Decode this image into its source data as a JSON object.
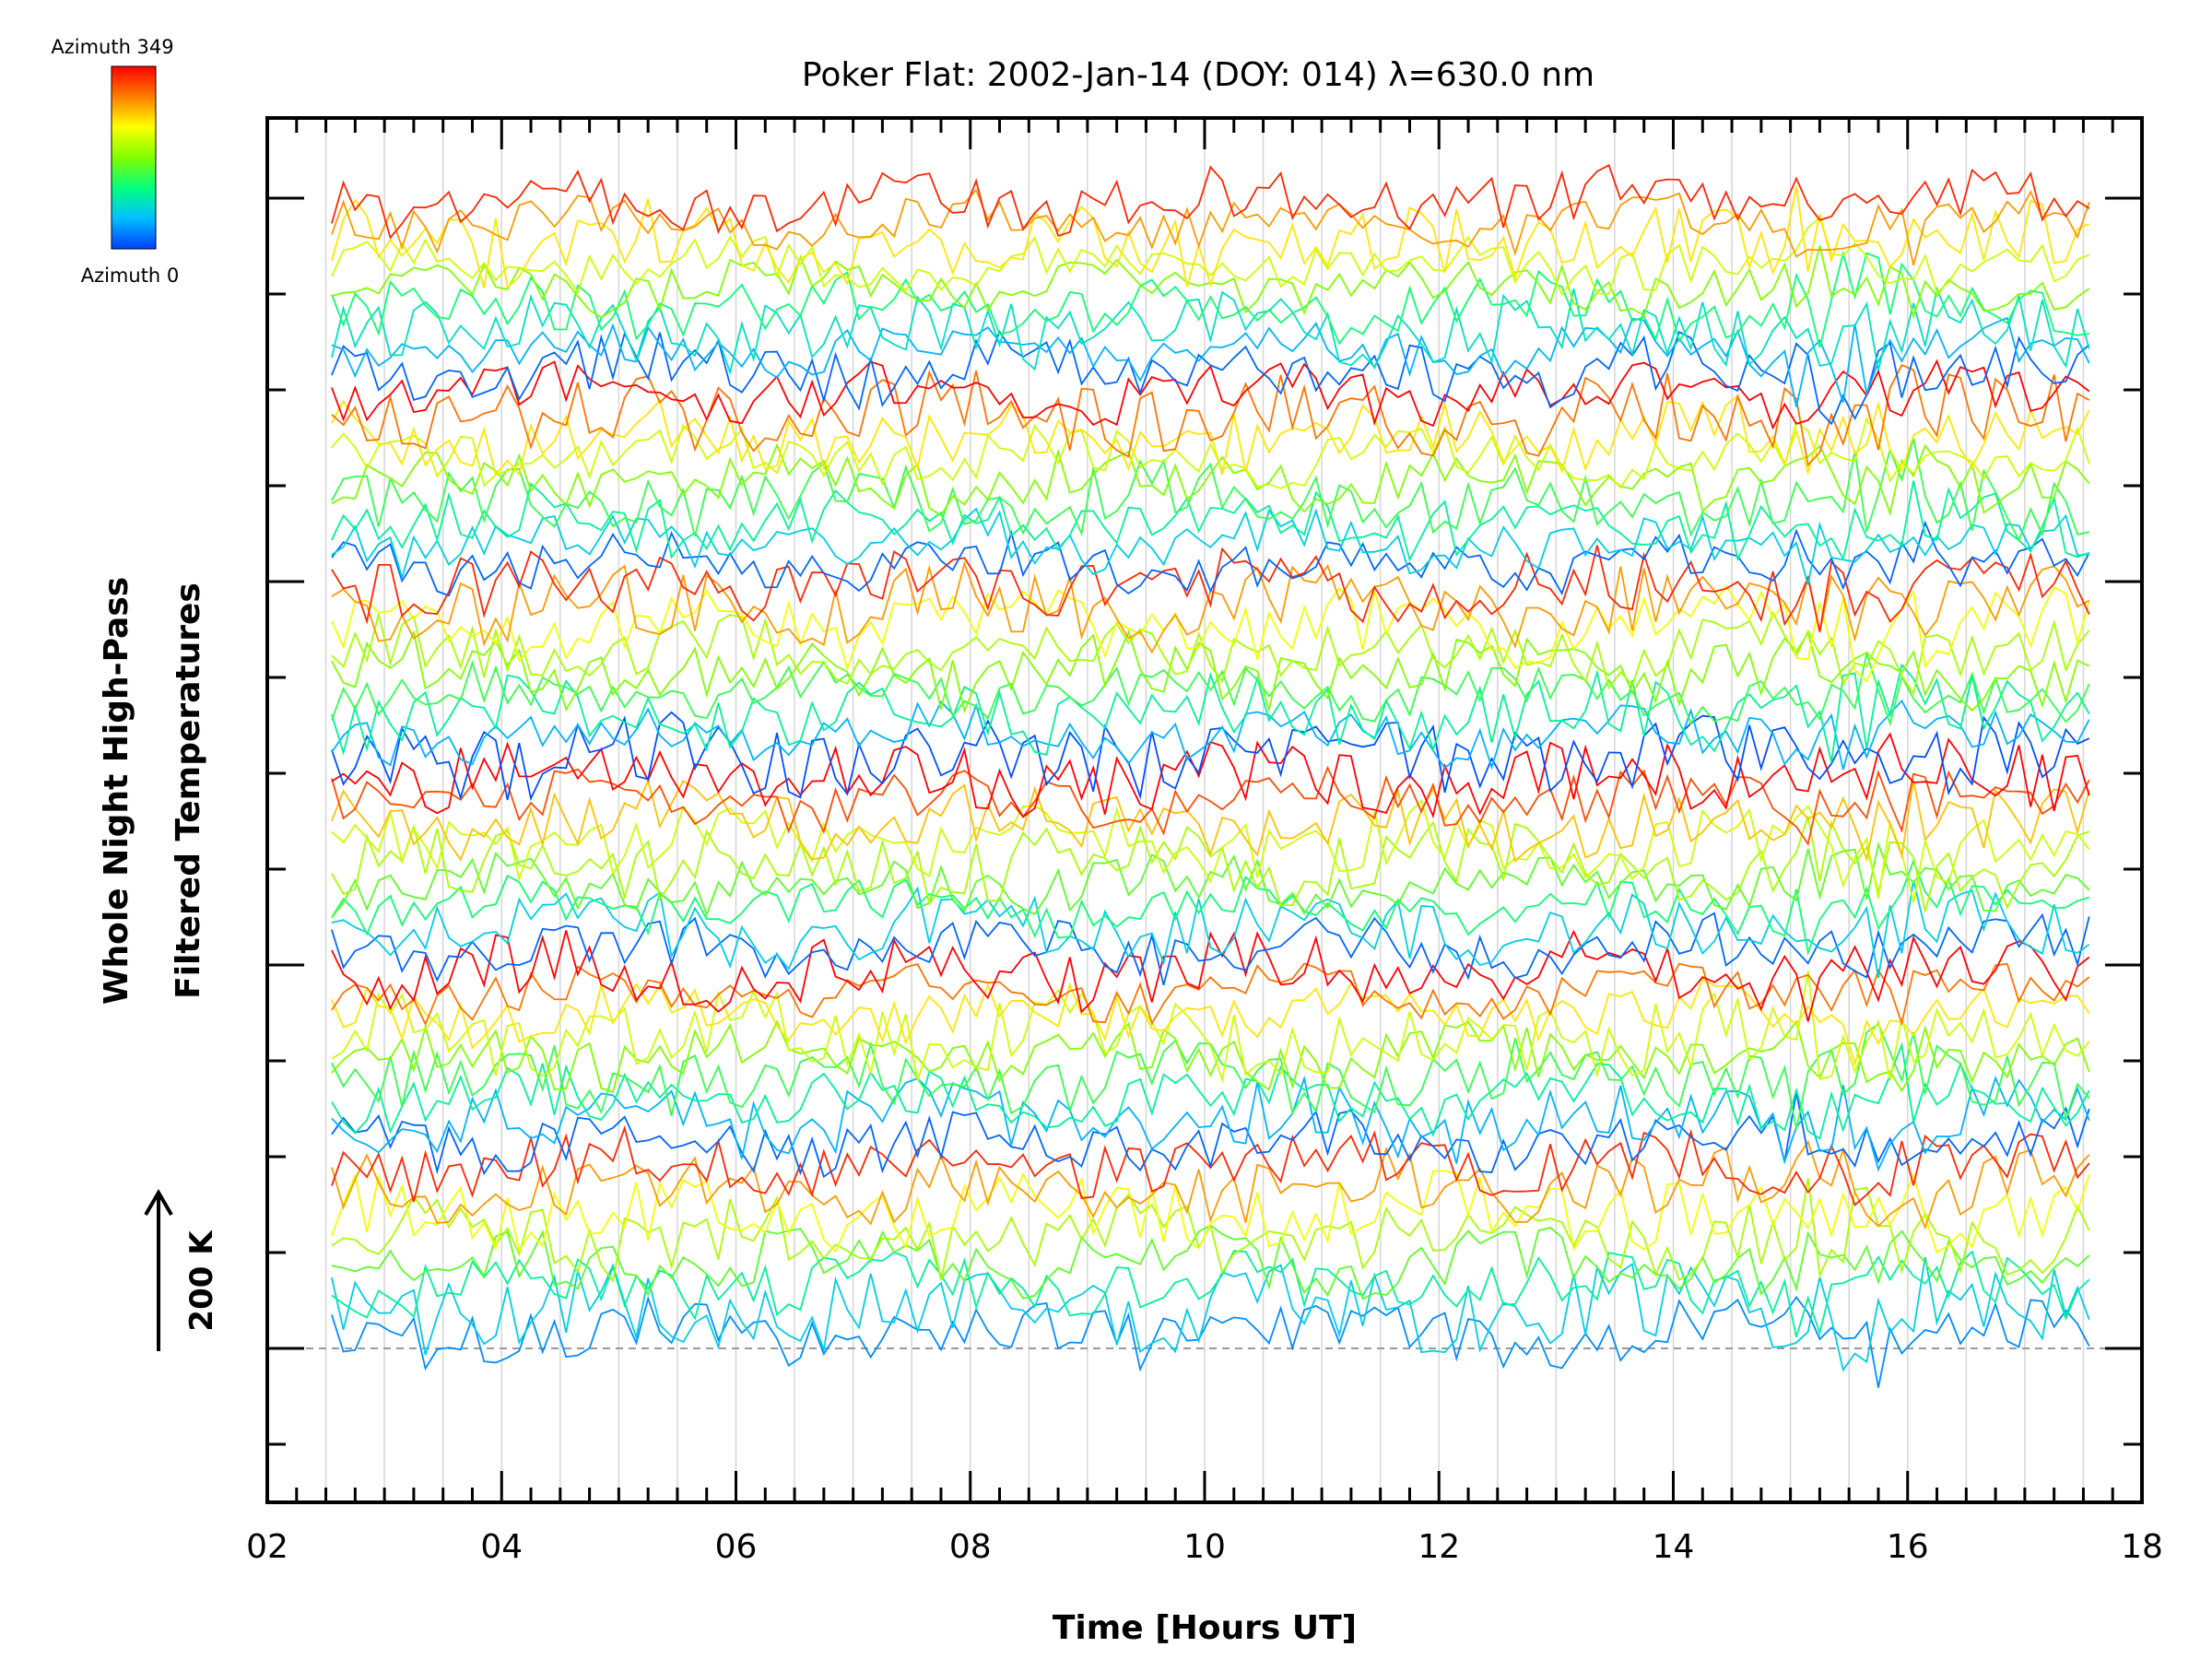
{
  "chart_data": {
    "type": "line",
    "title": "Poker Flat: 2002-Jan-14 (DOY: 014) λ=630.0 nm",
    "xlabel": "Time [Hours UT]",
    "ylabel_line1": "Whole Night High-Pass",
    "ylabel_line2": "Filtered Temperatures",
    "xlim": [
      2,
      18
    ],
    "x_ticks": [
      "02",
      "04",
      "06",
      "08",
      "10",
      "12",
      "14",
      "16",
      "18"
    ],
    "x_gridlines": [
      2.5,
      3,
      3.5,
      4,
      4.5,
      5,
      5.5,
      6,
      6.5,
      7,
      7.5,
      8,
      8.5,
      9,
      9.5,
      10,
      10.5,
      11,
      11.5,
      12,
      12.5,
      13,
      13.5,
      14,
      14.5,
      15,
      15.5,
      16,
      16.5,
      17,
      17.5
    ],
    "time_range": [
      2.55,
      17.55
    ],
    "scale_bar_label": "200 K",
    "colorbar": {
      "top_label": "Azimuth 349",
      "bottom_label": "Azimuth 0",
      "colors": [
        "#ff0000",
        "#ff8000",
        "#ffff00",
        "#80ff00",
        "#00ff80",
        "#00c0ff",
        "#0040ff"
      ]
    },
    "grid": "vertical dotted gray",
    "series_groups": [
      {
        "azimuth_fractions": [
          0.1,
          0.2,
          0.3,
          0.45,
          0.55,
          0.65,
          0.8,
          0.95
        ],
        "offset_level": 1
      },
      {
        "azimuth_fractions": [
          0.05,
          0.15,
          0.3,
          0.4,
          0.5,
          0.6,
          0.7,
          0.85,
          1.0
        ],
        "offset_level": 2
      },
      {
        "azimuth_fractions": [
          0.05,
          0.2,
          0.35,
          0.45,
          0.55,
          0.6,
          0.75,
          0.9,
          1.0
        ],
        "offset_level": 3
      },
      {
        "azimuth_fractions": [
          0.02,
          0.15,
          0.3,
          0.4,
          0.5,
          0.55,
          0.65,
          0.8,
          0.95
        ],
        "offset_level": 4
      },
      {
        "azimuth_fractions": [
          0.05,
          0.2,
          0.3,
          0.4,
          0.5,
          0.6,
          0.7,
          0.85,
          1.0
        ],
        "offset_level": 5
      },
      {
        "azimuth_fractions": [
          0.05,
          0.15,
          0.25,
          0.35,
          0.5,
          0.6,
          0.7,
          0.8,
          0.95
        ],
        "offset_level": 6
      }
    ]
  }
}
